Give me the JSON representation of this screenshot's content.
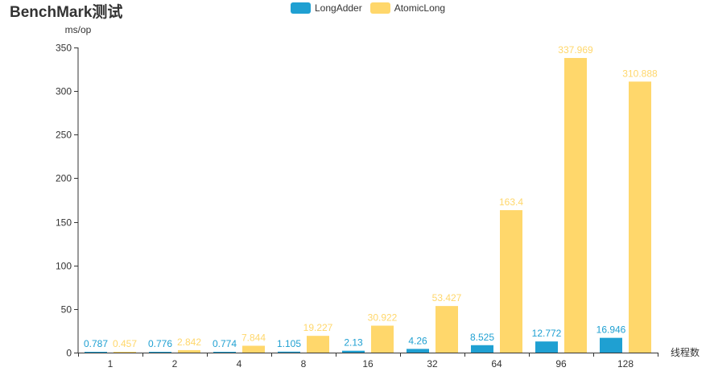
{
  "title": "BenchMark测试",
  "legend": [
    {
      "name": "LongAdder",
      "color": "#1FA0D2"
    },
    {
      "name": "AtomicLong",
      "color": "#FFD76B"
    }
  ],
  "chart_data": {
    "type": "bar",
    "title": "BenchMark测试",
    "xlabel": "线程数",
    "ylabel": "ms/op",
    "categories": [
      "1",
      "2",
      "4",
      "8",
      "16",
      "32",
      "64",
      "96",
      "128"
    ],
    "ylim": [
      0,
      350
    ],
    "yticks": [
      0,
      50,
      100,
      150,
      200,
      250,
      300,
      350
    ],
    "legend_position": "top-center",
    "grid": false,
    "series": [
      {
        "name": "LongAdder",
        "color": "#1FA0D2",
        "values": [
          0.787,
          0.776,
          0.774,
          1.105,
          2.13,
          4.26,
          8.525,
          12.772,
          16.946
        ]
      },
      {
        "name": "AtomicLong",
        "color": "#FFD76B",
        "values": [
          0.457,
          2.842,
          7.844,
          19.227,
          30.922,
          53.427,
          163.4,
          337.969,
          310.888
        ]
      }
    ]
  }
}
